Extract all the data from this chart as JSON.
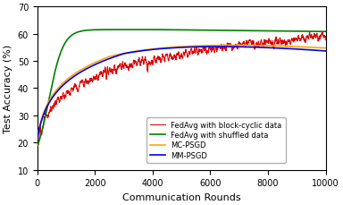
{
  "title": "",
  "xlabel": "Communication Rounds",
  "ylabel": "Test Accuracy (%)",
  "xlim": [
    0,
    10000
  ],
  "ylim": [
    10,
    70
  ],
  "yticks": [
    10,
    20,
    30,
    40,
    50,
    60,
    70
  ],
  "xticks": [
    0,
    2000,
    4000,
    6000,
    8000,
    10000
  ],
  "colors": {
    "MM-PSGD": "#0000ee",
    "MC-PSGD": "#ffa500",
    "FedAvg_shuffled": "#008000",
    "FedAvg_blockcyclic": "#dd0000"
  },
  "legend_labels": [
    "MM-PSGD",
    "MC-PSGD",
    "FedAvg with shuffled data",
    "FedAvg with block-cyclic data"
  ],
  "figsize": [
    3.84,
    2.3
  ],
  "dpi": 100
}
